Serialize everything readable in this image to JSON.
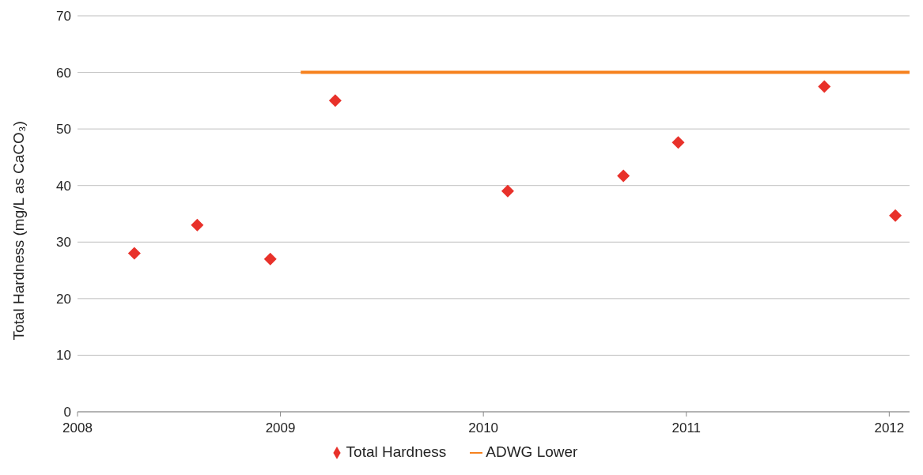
{
  "chart_data": {
    "type": "scatter",
    "ylabel": "Total Hardness (mg/L as CaCO₃)",
    "xlim": [
      2008,
      2012.1
    ],
    "xticks": [
      2008,
      2009,
      2010,
      2011,
      2012
    ],
    "ylim": [
      0,
      70
    ],
    "yticks": [
      0,
      10,
      20,
      30,
      40,
      50,
      60,
      70
    ],
    "grid": "y",
    "legend": "bottom",
    "marker": "diamond",
    "series": [
      {
        "name": "Total Hardness",
        "color": "#e8312a",
        "x": [
          2008.28,
          2008.59,
          2008.95,
          2009.27,
          2010.12,
          2010.69,
          2010.96,
          2011.68,
          2012.03
        ],
        "values": [
          28,
          33,
          27,
          55,
          39,
          41.7,
          47.6,
          57.5,
          34.7
        ]
      },
      {
        "name": "ADWG Lower",
        "type": "line",
        "marker": "none",
        "color": "#f6821f",
        "x": [
          2009.1,
          2012.1
        ],
        "values": [
          60,
          60
        ]
      }
    ]
  }
}
